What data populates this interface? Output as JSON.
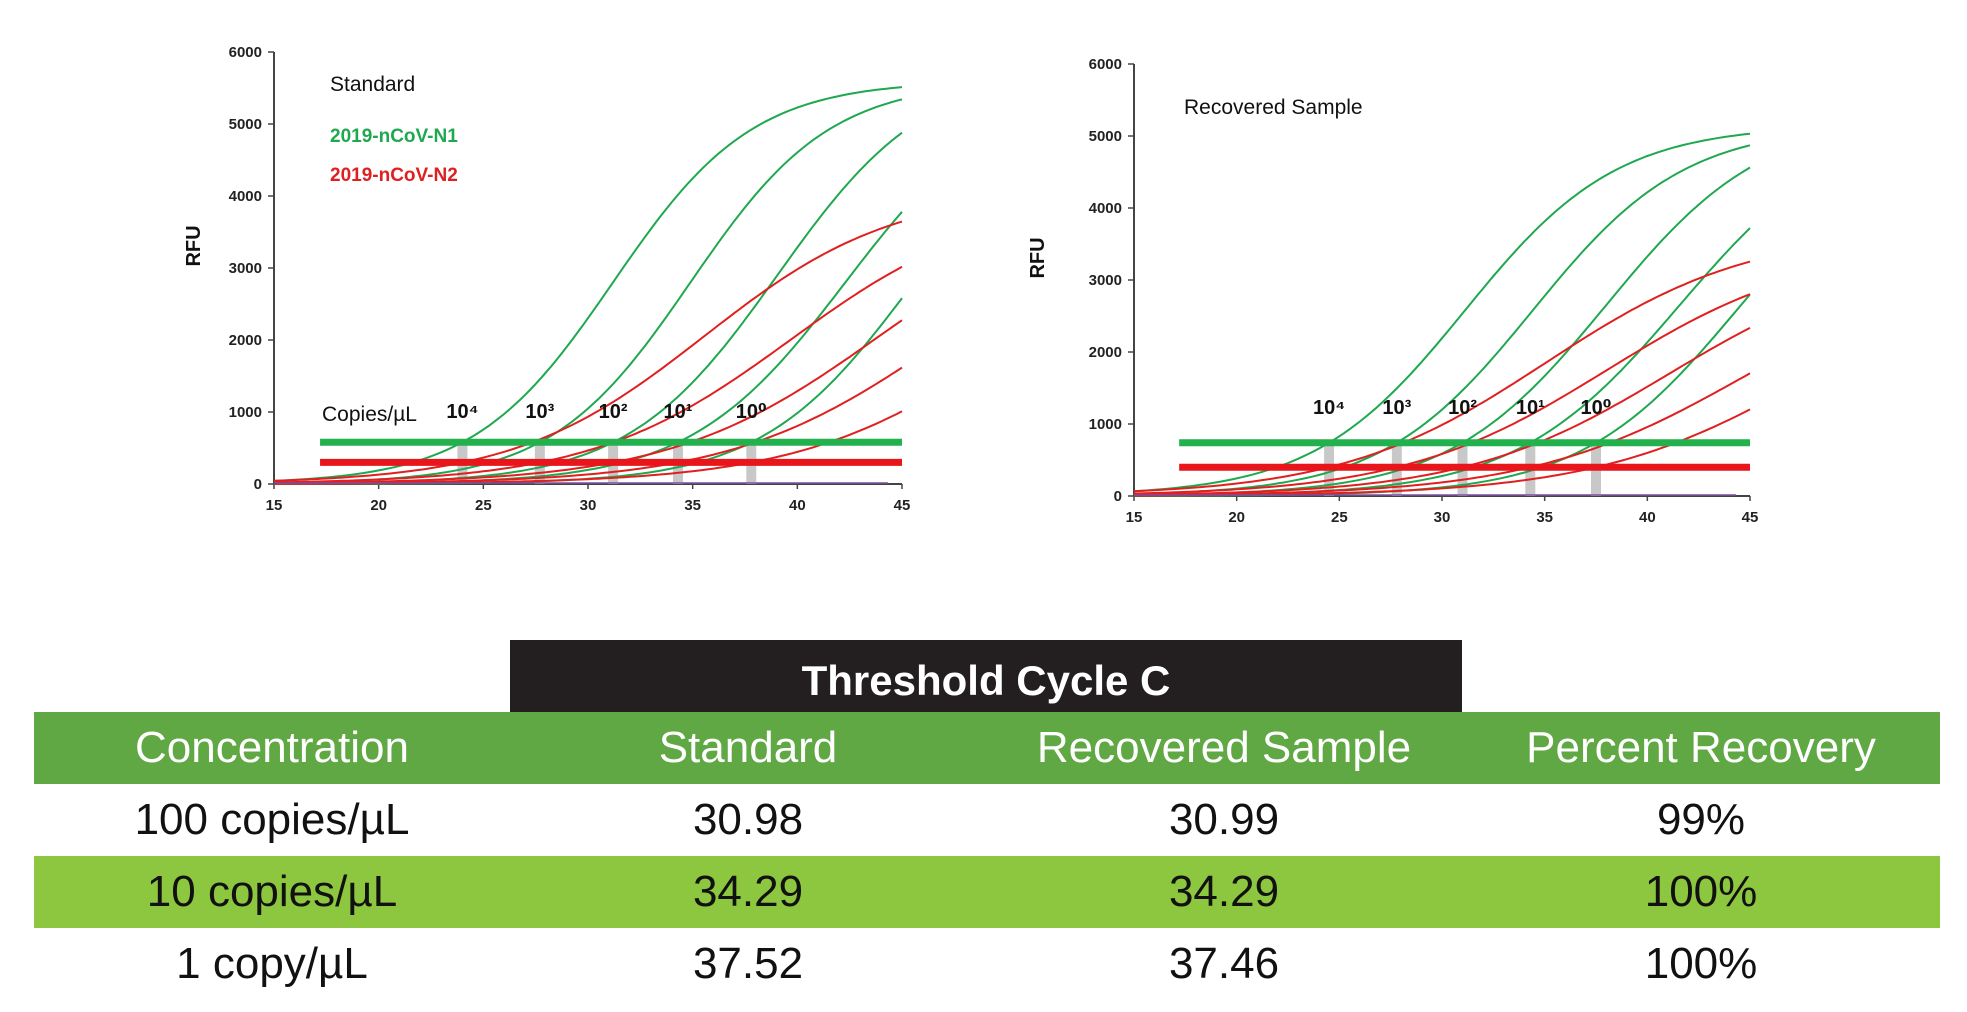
{
  "chart_data": [
    {
      "type": "line",
      "title": "Standard",
      "xlabel": "",
      "ylabel": "RFU",
      "xlim": [
        15,
        45
      ],
      "ylim": [
        0,
        6000
      ],
      "xticks": [
        "15",
        "20",
        "25",
        "30",
        "35",
        "40",
        "45"
      ],
      "yticks": [
        "0",
        "1000",
        "2000",
        "3000",
        "4000",
        "5000",
        "6000"
      ],
      "legend": [
        {
          "name": "2019-nCoV-N1",
          "color": "#1fa84f"
        },
        {
          "name": "2019-nCoV-N2",
          "color": "#e02020"
        }
      ],
      "copies_label": "Copies/µL",
      "dilution_labels": [
        "10⁴",
        "10³",
        "10²",
        "10¹",
        "10⁰"
      ],
      "threshold_cycles": [
        24,
        27.7,
        31.2,
        34.3,
        37.8
      ],
      "thresholds": {
        "N1": 580,
        "N2": 300,
        "from_x": 17.2
      },
      "series": [
        {
          "name": "2019-nCoV-N1",
          "color": "#1fa84f",
          "curves": [
            {
              "ct": 24.0,
              "max": 5600,
              "steep": 0.3
            },
            {
              "ct": 27.7,
              "max": 5600,
              "steep": 0.3
            },
            {
              "ct": 31.2,
              "max": 5800,
              "steep": 0.28
            },
            {
              "ct": 34.3,
              "max": 5600,
              "steep": 0.27
            },
            {
              "ct": 37.8,
              "max": 5500,
              "steep": 0.28
            }
          ]
        },
        {
          "name": "2019-nCoV-N2",
          "color": "#e02020",
          "curves": [
            {
              "ct": 24.0,
              "max": 4100,
              "steep": 0.22
            },
            {
              "ct": 27.7,
              "max": 4000,
              "steep": 0.21
            },
            {
              "ct": 31.2,
              "max": 4100,
              "steep": 0.2
            },
            {
              "ct": 34.3,
              "max": 3900,
              "steep": 0.2
            },
            {
              "ct": 37.8,
              "max": 3800,
              "steep": 0.2
            }
          ]
        }
      ]
    },
    {
      "type": "line",
      "title": "Recovered Sample",
      "xlabel": "",
      "ylabel": "RFU",
      "xlim": [
        15,
        45
      ],
      "ylim": [
        0,
        6000
      ],
      "xticks": [
        "15",
        "20",
        "25",
        "30",
        "35",
        "40",
        "45"
      ],
      "yticks": [
        "0",
        "1000",
        "2000",
        "3000",
        "4000",
        "5000",
        "6000"
      ],
      "dilution_labels": [
        "10⁴",
        "10³",
        "10²",
        "10¹",
        "10⁰"
      ],
      "threshold_cycles": [
        24.5,
        27.8,
        31.0,
        34.3,
        37.5
      ],
      "thresholds": {
        "N1": 740,
        "N2": 400,
        "from_x": 17.2
      },
      "series": [
        {
          "name": "2019-nCoV-N1",
          "color": "#1fa84f",
          "curves": [
            {
              "ct": 24.5,
              "max": 5150,
              "steep": 0.27
            },
            {
              "ct": 27.8,
              "max": 5150,
              "steep": 0.27
            },
            {
              "ct": 31.0,
              "max": 5300,
              "steep": 0.26
            },
            {
              "ct": 34.3,
              "max": 5300,
              "steep": 0.25
            },
            {
              "ct": 37.5,
              "max": 5200,
              "steep": 0.26
            }
          ]
        },
        {
          "name": "2019-nCoV-N2",
          "color": "#e02020",
          "curves": [
            {
              "ct": 24.5,
              "max": 3700,
              "steep": 0.2
            },
            {
              "ct": 27.8,
              "max": 3500,
              "steep": 0.2
            },
            {
              "ct": 31.0,
              "max": 3400,
              "steep": 0.2
            },
            {
              "ct": 34.3,
              "max": 3350,
              "steep": 0.19
            },
            {
              "ct": 37.5,
              "max": 3300,
              "steep": 0.19
            }
          ]
        }
      ]
    }
  ],
  "table": {
    "band_title": "Threshold Cycle C",
    "headers": [
      "Concentration",
      "Standard",
      "Recovered Sample",
      "Percent Recovery"
    ],
    "rows": [
      [
        "100 copies/µL",
        "30.98",
        "30.99",
        "99%"
      ],
      [
        "10 copies/µL",
        "34.29",
        "34.29",
        "100%"
      ],
      [
        "1 copy/µL",
        "37.52",
        "37.46",
        "100%"
      ]
    ]
  },
  "colors": {
    "band": "#231f20",
    "header_green": "#5fa844",
    "alt_row_green": "#8dc63f",
    "n1_green": "#1fa84f",
    "n2_red": "#e02020",
    "threshold_green": "#22b14c",
    "threshold_red": "#e8151b"
  }
}
